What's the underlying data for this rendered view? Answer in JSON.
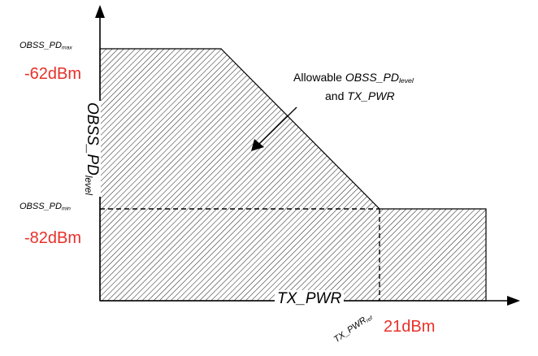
{
  "labels": {
    "obss_max_base": "OBSS_PD",
    "obss_max_sub": "max",
    "obss_min_base": "OBSS_PD",
    "obss_min_sub": "min",
    "max_dbm": "-62dBm",
    "min_dbm": "-82dBm",
    "y_axis_base": "OBSS_PD",
    "y_axis_sub": "level",
    "x_axis": "TX_PWR",
    "tx_ref_base": "TX_PWR",
    "tx_ref_sub": "ref",
    "tx_ref_dbm": "21dBm",
    "annotation_prefix": "Allowable ",
    "annotation_var1_base": "OBSS_PD",
    "annotation_var1_sub": "level",
    "annotation_line2_prefix": "and ",
    "annotation_var2": "TX_PWR"
  },
  "colors": {
    "accent_red": "#e8302a",
    "line": "#000000",
    "hatch": "#000000"
  }
}
